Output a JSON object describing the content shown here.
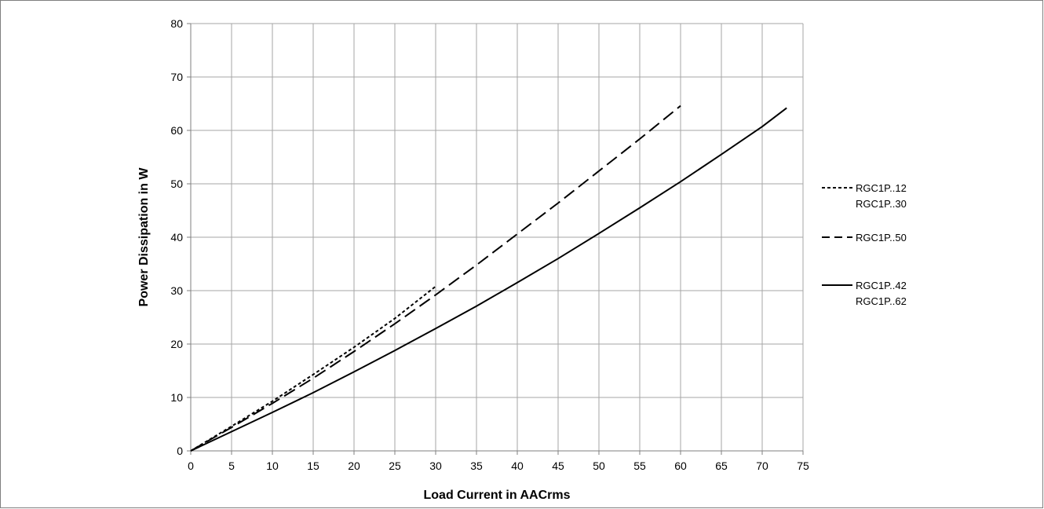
{
  "chart_data": {
    "type": "line",
    "xlabel": "Load Current in AACrms",
    "ylabel": "Power Dissipation in W",
    "xlim": [
      0,
      75
    ],
    "ylim": [
      0,
      80
    ],
    "x_ticks": [
      "0",
      "5",
      "10",
      "15",
      "20",
      "25",
      "30",
      "35",
      "40",
      "45",
      "50",
      "55",
      "60",
      "65",
      "70",
      "75"
    ],
    "y_ticks": [
      "0",
      "10",
      "20",
      "30",
      "40",
      "50",
      "60",
      "70",
      "80"
    ],
    "grid": true,
    "legend_position": "right",
    "series": [
      {
        "name_lines": [
          "RGC1P..12",
          "RGC1P..30"
        ],
        "style": "dotted",
        "x": [
          0,
          5,
          10,
          15,
          20,
          25,
          30
        ],
        "y": [
          0,
          4.6,
          9.3,
          14.3,
          19.4,
          24.8,
          30.8
        ]
      },
      {
        "name_lines": [
          "RGC1P..50"
        ],
        "style": "dashed",
        "x": [
          0,
          5,
          10,
          15,
          20,
          25,
          30,
          35,
          40,
          45,
          50,
          55,
          60
        ],
        "y": [
          0,
          4.4,
          8.9,
          13.6,
          18.6,
          23.8,
          29.2,
          34.8,
          40.6,
          46.4,
          52.4,
          58.4,
          64.6
        ]
      },
      {
        "name_lines": [
          "RGC1P..42",
          "RGC1P..62"
        ],
        "style": "solid",
        "x": [
          0,
          5,
          10,
          15,
          20,
          25,
          30,
          35,
          40,
          45,
          50,
          55,
          60,
          65,
          70,
          73
        ],
        "y": [
          0,
          3.6,
          7.2,
          10.9,
          14.8,
          18.8,
          22.9,
          27.1,
          31.5,
          36.0,
          40.7,
          45.5,
          50.4,
          55.5,
          60.7,
          64.2
        ]
      }
    ]
  }
}
